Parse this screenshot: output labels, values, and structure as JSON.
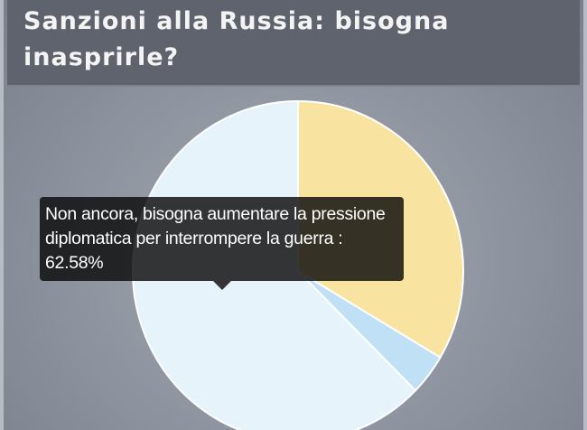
{
  "chart_data": {
    "type": "pie",
    "title": "Sanzioni alla Russia: bisogna inasprirle?",
    "slices": [
      {
        "label": "",
        "value": 33.5,
        "color": "#f8e4a0"
      },
      {
        "label": "",
        "value": 3.92,
        "color": "#bfe0f5"
      },
      {
        "label": "Non ancora, bisogna aumentare la pressione diplomatica per interrompere la guerra",
        "value": 62.58,
        "color": "#e6f3fb"
      }
    ],
    "tooltip": {
      "text": "Non ancora, bisogna aumentare la pressione diplomatica per interrompere la guerra : 62.58%"
    }
  }
}
